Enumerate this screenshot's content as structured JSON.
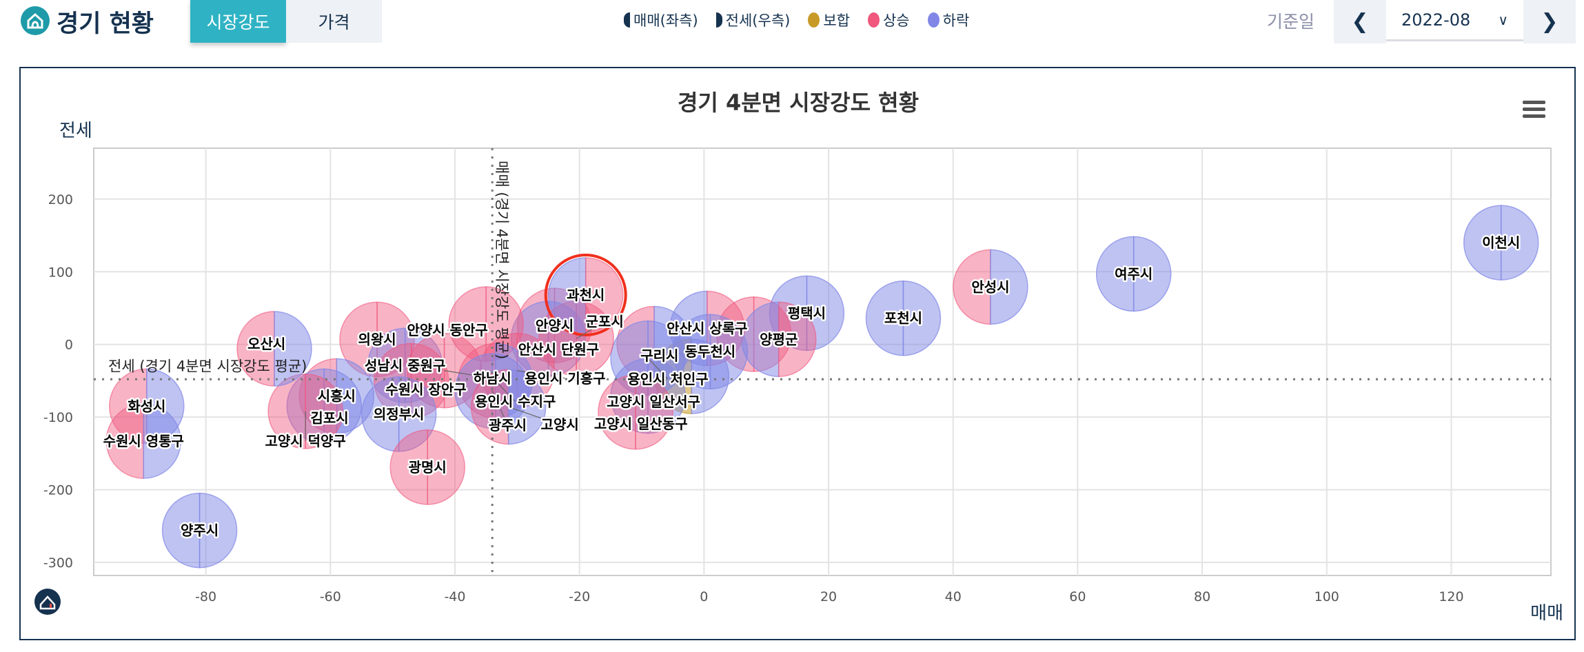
{
  "header": {
    "title": "경기 현황",
    "tabs": [
      {
        "label": "시장강도",
        "active": true
      },
      {
        "label": "가격",
        "active": false
      }
    ],
    "legend": [
      {
        "label": "매매(좌측)",
        "icon": "left-half-circle-icon"
      },
      {
        "label": "전세(우측)",
        "icon": "right-half-circle-icon"
      },
      {
        "label": "보합",
        "color": "#c89b28"
      },
      {
        "label": "상승",
        "color": "#f0587e"
      },
      {
        "label": "하락",
        "color": "#8087e6"
      }
    ],
    "date_label": "기준일",
    "date_value": "2022-08",
    "prev_icon": "chevron-left-icon",
    "next_icon": "chevron-right-icon"
  },
  "chart_data": {
    "type": "scatter",
    "subtype": "bubble",
    "title": "경기 4분면 시장강도 현황",
    "xlabel": "매매",
    "ylabel": "전세",
    "xlim": [
      -98,
      136
    ],
    "ylim": [
      -318,
      270
    ],
    "xticks": [
      -80,
      -60,
      -40,
      -20,
      0,
      20,
      40,
      60,
      80,
      100,
      120
    ],
    "yticks": [
      200,
      100,
      0,
      -100,
      -200,
      -300
    ],
    "grid": true,
    "status_colors": {
      "상승": "#f0587e",
      "하락": "#8087e6",
      "보합": "#c89b28"
    },
    "reference_lines": {
      "x": {
        "value": -34,
        "label": "매매 (경기 4분면 시장강도 평균)"
      },
      "y": {
        "value": -48,
        "label": "전세 (경기 4분면 시장강도 평균)"
      }
    },
    "highlight": "과천시",
    "points": [
      {
        "name": "이천시",
        "x": 128,
        "y": 140,
        "sale": "하락",
        "jeonse": "하락"
      },
      {
        "name": "여주시",
        "x": 69,
        "y": 97,
        "sale": "하락",
        "jeonse": "하락"
      },
      {
        "name": "안성시",
        "x": 46,
        "y": 79,
        "sale": "상승",
        "jeonse": "하락"
      },
      {
        "name": "포천시",
        "x": 32,
        "y": 36,
        "sale": "하락",
        "jeonse": "하락"
      },
      {
        "name": "평택시",
        "x": 16.5,
        "y": 43,
        "sale": "하락",
        "jeonse": "하락"
      },
      {
        "name": "",
        "x": 8,
        "y": 14,
        "sale": "상승",
        "jeonse": "상승"
      },
      {
        "name": "양평군",
        "x": 12,
        "y": 7,
        "sale": "하락",
        "jeonse": "상승"
      },
      {
        "name": "안산시 상록구",
        "x": 0.5,
        "y": 22,
        "sale": "하락",
        "jeonse": "상승"
      },
      {
        "name": "",
        "x": -2,
        "y": -44,
        "sale": "보합",
        "jeonse": "하락"
      },
      {
        "name": "동두천시",
        "x": 1,
        "y": -10,
        "sale": "하락",
        "jeonse": "하락"
      },
      {
        "name": "구리시",
        "x": -8,
        "y": 1,
        "sale": "상승",
        "jeonse": "하락"
      },
      {
        "name": "용인시 처인구",
        "x": -9,
        "y": -19,
        "sale": "하락",
        "jeonse": "하락"
      },
      {
        "name": "고양시 일산서구",
        "x": -9,
        "y": -71,
        "sale": "하락",
        "jeonse": "하락"
      },
      {
        "name": "고양시 일산동구",
        "x": -11,
        "y": -93,
        "sale": "상승",
        "jeonse": "상승"
      },
      {
        "name": "안양시",
        "x": -24,
        "y": 26,
        "sale": "상승",
        "jeonse": "상승"
      },
      {
        "name": "안산시 단원구",
        "x": -25,
        "y": 8,
        "sale": "하락",
        "jeonse": "하락"
      },
      {
        "name": "군포시",
        "x": -20.5,
        "y": 8,
        "sale": "상승",
        "jeonse": "상승"
      },
      {
        "name": "안양시 동안구",
        "x": -35,
        "y": 28,
        "sale": "상승",
        "jeonse": "상승"
      },
      {
        "name": "의왕시",
        "x": -52.5,
        "y": 7,
        "sale": "상승",
        "jeonse": "상승"
      },
      {
        "name": "성남시 중원구",
        "x": -48,
        "y": -29,
        "sale": "하락",
        "jeonse": "하락"
      },
      {
        "name": "수원시 장안구",
        "x": -47,
        "y": -50,
        "sale": "상승",
        "jeonse": "상승"
      },
      {
        "name": "하남시",
        "x": -41.7,
        "y": -36,
        "sale": "상승",
        "jeonse": "상승"
      },
      {
        "name": "용인시 기흥구",
        "x": -30,
        "y": -36,
        "sale": "상승",
        "jeonse": "상승"
      },
      {
        "name": "용인시 수지구",
        "x": -33.5,
        "y": -50,
        "sale": "상승",
        "jeonse": "하락"
      },
      {
        "name": "광주시",
        "x": -34,
        "y": -64,
        "sale": "하락",
        "jeonse": "하락"
      },
      {
        "name": "고양시",
        "x": -31.4,
        "y": -86,
        "sale": "상승",
        "jeonse": "하락"
      },
      {
        "name": "의정부시",
        "x": -49,
        "y": -96,
        "sale": "하락",
        "jeonse": "하락"
      },
      {
        "name": "광명시",
        "x": -44.4,
        "y": -169,
        "sale": "상승",
        "jeonse": "상승"
      },
      {
        "name": "시흥시",
        "x": -59,
        "y": -71,
        "sale": "상승",
        "jeonse": "하락"
      },
      {
        "name": "김포시",
        "x": -61,
        "y": -85,
        "sale": "하락",
        "jeonse": "하락"
      },
      {
        "name": "고양시 덕양구",
        "x": -64,
        "y": -92,
        "sale": "상승",
        "jeonse": "상승"
      },
      {
        "name": "과천시",
        "x": -19,
        "y": 68,
        "sale": "하락",
        "jeonse": "상승"
      },
      {
        "name": "오산시",
        "x": -69,
        "y": -6,
        "sale": "상승",
        "jeonse": "하락"
      },
      {
        "name": "화성시",
        "x": -89.5,
        "y": -85,
        "sale": "상승",
        "jeonse": "하락"
      },
      {
        "name": "수원시 영통구",
        "x": -90,
        "y": -133,
        "sale": "상승",
        "jeonse": "하락"
      },
      {
        "name": "양주시",
        "x": -81,
        "y": -256,
        "sale": "하락",
        "jeonse": "하락"
      }
    ]
  },
  "menu_icon": "hamburger-menu-icon",
  "brand_icon": "home-logo-icon"
}
